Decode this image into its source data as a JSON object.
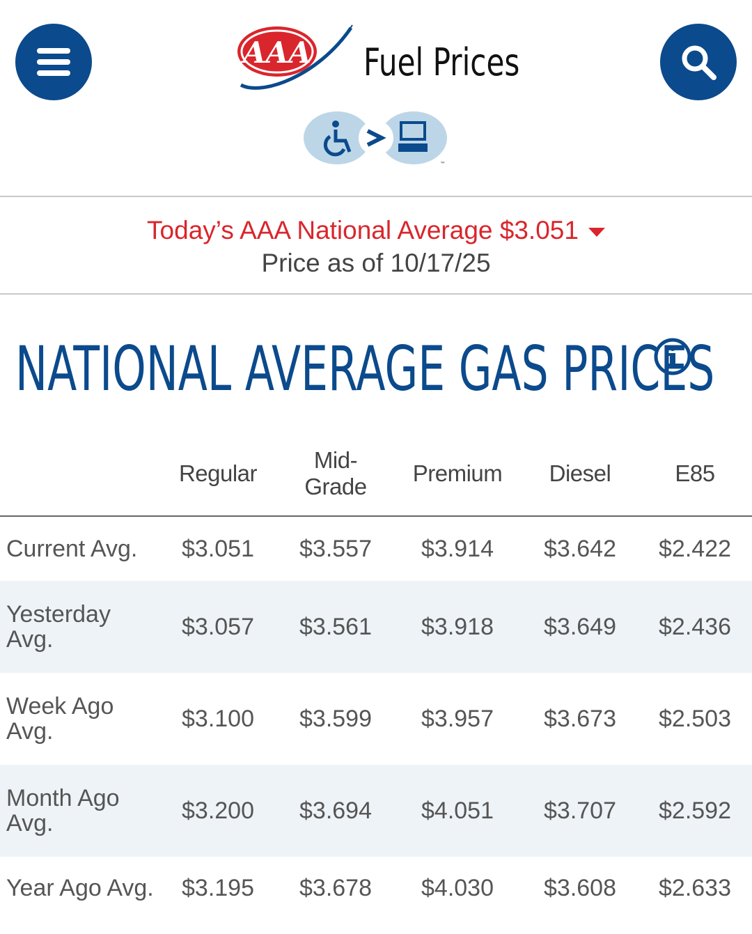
{
  "header": {
    "logo_text": "AAA",
    "title": "Fuel Prices",
    "menu_icon": "hamburger-menu-icon",
    "search_icon": "search-icon",
    "accessibility_badge_icon": "wheelchair-to-computer-icon",
    "accessibility_badge_mark": "™"
  },
  "banner": {
    "national_average": "Today’s AAA National Average $3.051",
    "trend_icon": "down-triangle-icon",
    "date": "Price as of 10/17/25"
  },
  "section": {
    "title": "NATIONAL AVERAGE GAS PRICES",
    "info_icon": "info-icon"
  },
  "table": {
    "columns": [
      "Regular",
      "Mid-\nGrade",
      "Premium",
      "Diesel",
      "E85"
    ],
    "rows": [
      {
        "label": "Current Avg.",
        "values": [
          "$3.051",
          "$3.557",
          "$3.914",
          "$3.642",
          "$2.422"
        ]
      },
      {
        "label": "Yesterday Avg.",
        "values": [
          "$3.057",
          "$3.561",
          "$3.918",
          "$3.649",
          "$2.436"
        ]
      },
      {
        "label": "Week Ago Avg.",
        "values": [
          "$3.100",
          "$3.599",
          "$3.957",
          "$3.673",
          "$2.503"
        ]
      },
      {
        "label": "Month Ago Avg.",
        "values": [
          "$3.200",
          "$3.694",
          "$4.051",
          "$3.707",
          "$2.592"
        ]
      },
      {
        "label": "Year Ago Avg.",
        "values": [
          "$3.195",
          "$3.678",
          "$4.030",
          "$3.608",
          "$2.633"
        ]
      }
    ]
  },
  "colors": {
    "brand_blue": "#0b4a8c",
    "alert_red": "#d9262c",
    "row_stripe": "#eef3f7"
  }
}
